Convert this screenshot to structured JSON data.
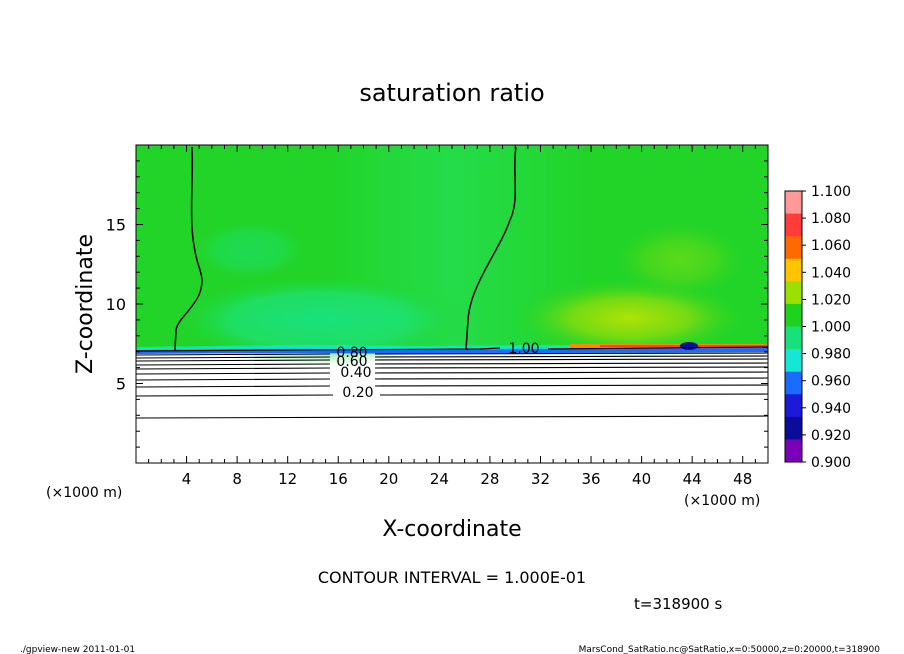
{
  "chart_data": {
    "type": "heatmap",
    "title": "saturation ratio",
    "xlabel": "X-coordinate",
    "ylabel": "Z-coordinate",
    "x_unit": "(×1000 m)",
    "y_unit": "(×1000 m)",
    "xlim": [
      0,
      50
    ],
    "ylim": [
      0,
      20
    ],
    "x_ticks": [
      "4",
      "8",
      "12",
      "16",
      "20",
      "24",
      "28",
      "32",
      "36",
      "40",
      "44",
      "48"
    ],
    "y_ticks": [
      "5",
      "10",
      "15"
    ],
    "colorbar": {
      "labels": [
        "1.100",
        "1.080",
        "1.060",
        "1.040",
        "1.020",
        "1.000",
        "0.980",
        "0.960",
        "0.940",
        "0.920",
        "0.900"
      ],
      "colors": [
        "#ff9999",
        "#ff3b3b",
        "#ff6a00",
        "#ffc400",
        "#9be000",
        "#1ed21e",
        "#18e07a",
        "#16e6d6",
        "#1a6bff",
        "#1a1ad8",
        "#0c0c9a",
        "#7a00b8"
      ]
    },
    "contour_labels": [
      "1.00",
      "0.80",
      "0.60",
      "0.40",
      "0.20"
    ],
    "contour_interval_text": "CONTOUR INTERVAL = 1.000E-01",
    "time_text": "t=318900 s",
    "footer_left": "./gpview-new   2011-01-01",
    "footer_right": "MarsCond_SatRatio.nc@SatRatio,x=0:50000,z=0:20000,t=318900"
  }
}
